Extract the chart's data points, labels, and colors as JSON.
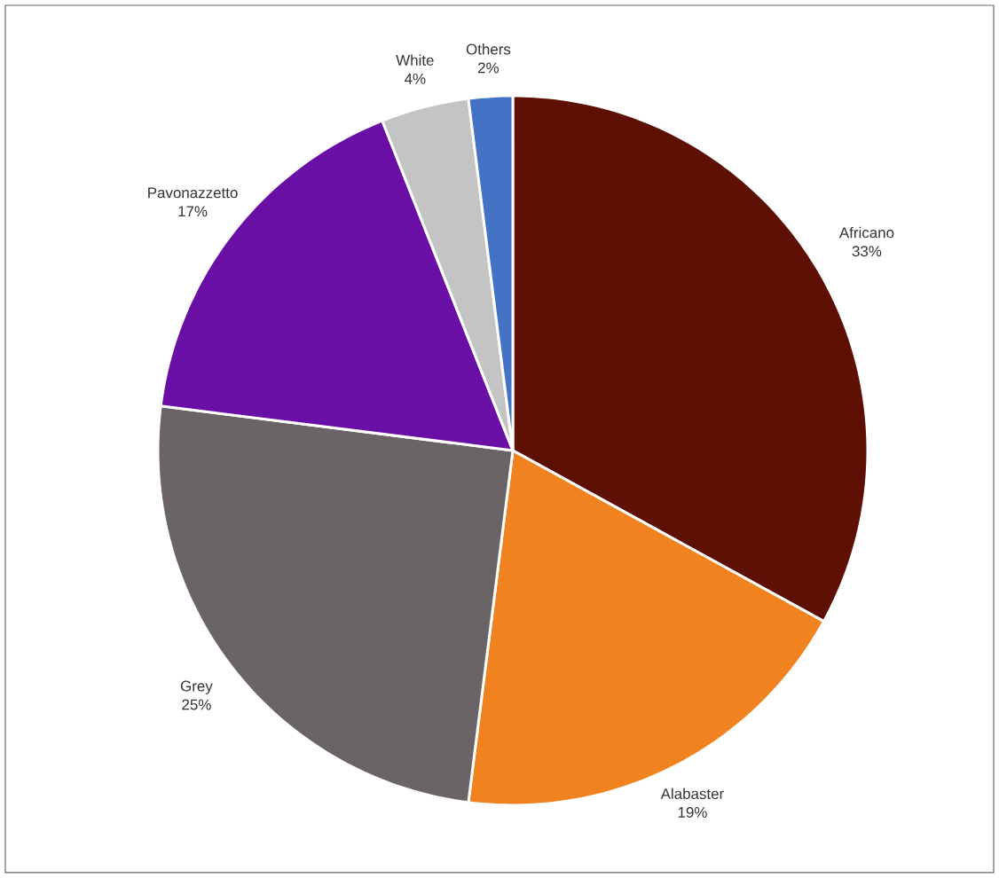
{
  "chart_data": {
    "type": "pie",
    "categories": [
      "Africano",
      "Alabaster",
      "Grey",
      "Pavonazzetto",
      "White",
      "Others"
    ],
    "values": [
      33,
      19,
      25,
      17,
      4,
      2
    ],
    "colors": [
      "#5e1004",
      "#f08220",
      "#6a6466",
      "#6a0fa5",
      "#c4c4c4",
      "#4472c4"
    ],
    "value_labels": [
      "33%",
      "19%",
      "25%",
      "17%",
      "4%",
      "2%"
    ]
  }
}
